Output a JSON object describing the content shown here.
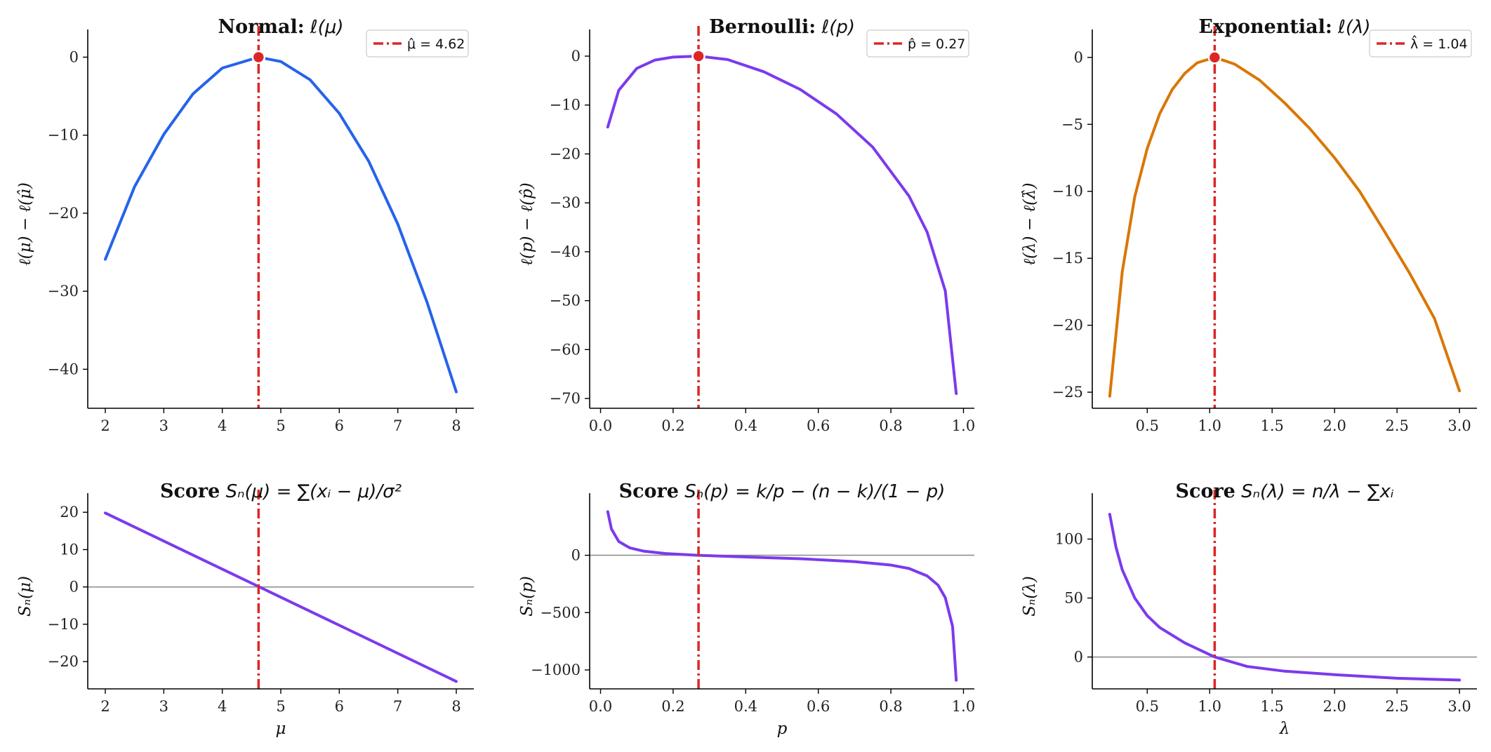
{
  "colors": {
    "mle_line": "#dc2626",
    "normal_curve": "#2563eb",
    "bernoulli_curve": "#7c3aed",
    "exponential_curve": "#d97706",
    "score_curve": "#7c3aed",
    "zero_line": "#888888"
  },
  "chart_data": [
    {
      "type": "line",
      "title_bold": "Normal:",
      "title_math": "ℓ(μ)",
      "xlabel": "",
      "ylabel": "ℓ(μ) − ℓ(μ̂)",
      "xlim": [
        1.7,
        8.3
      ],
      "ylim": [
        -45,
        2.2
      ],
      "xticks": [
        2,
        3,
        4,
        5,
        6,
        7,
        8
      ],
      "yticks": [
        0,
        -10,
        -20,
        -30,
        -40
      ],
      "mle": 4.62,
      "legend": "μ̂ = 4.62",
      "legend_position": "top-right",
      "series": [
        {
          "curve": "normal_curve",
          "x": [
            2,
            2.5,
            3,
            3.5,
            4,
            4.62,
            5,
            5.5,
            6,
            6.5,
            7,
            7.5,
            8
          ],
          "y": [
            -25.9,
            -16.6,
            -9.9,
            -4.7,
            -1.4,
            0,
            -0.56,
            -2.9,
            -7.2,
            -13.3,
            -21.4,
            -31.4,
            -42.9
          ]
        }
      ]
    },
    {
      "type": "line",
      "title_bold": "Bernoulli:",
      "title_math": "ℓ(p)",
      "xlabel": "",
      "ylabel": "ℓ(p) − ℓ(p̂)",
      "xlim": [
        -0.03,
        1.03
      ],
      "ylim": [
        -72,
        3.3
      ],
      "xticks": [
        0.0,
        0.2,
        0.4,
        0.6,
        0.8,
        1.0
      ],
      "yticks": [
        0,
        -10,
        -20,
        -30,
        -40,
        -50,
        -60,
        -70
      ],
      "mle": 0.27,
      "legend": "p̂ = 0.27",
      "legend_position": "top-right",
      "series": [
        {
          "curve": "bernoulli_curve",
          "x": [
            0.02,
            0.05,
            0.1,
            0.15,
            0.2,
            0.27,
            0.35,
            0.45,
            0.55,
            0.65,
            0.75,
            0.85,
            0.9,
            0.95,
            0.98
          ],
          "y": [
            -14.5,
            -7.0,
            -2.5,
            -0.8,
            -0.2,
            0,
            -0.7,
            -3.2,
            -6.8,
            -11.8,
            -18.6,
            -28.6,
            -36.0,
            -48.0,
            -69.0
          ]
        }
      ]
    },
    {
      "type": "line",
      "title_bold": "Exponential:",
      "title_math": "ℓ(λ)",
      "xlabel": "",
      "ylabel": "ℓ(λ) − ℓ(λ̂)",
      "xlim": [
        0.06,
        3.14
      ],
      "ylim": [
        -26.2,
        1.3
      ],
      "xticks": [
        0.5,
        1.0,
        1.5,
        2.0,
        2.5,
        3.0
      ],
      "yticks": [
        0,
        -5,
        -10,
        -15,
        -20,
        -25
      ],
      "mle": 1.04,
      "legend": "λ̂ = 1.04",
      "legend_position": "top-right",
      "series": [
        {
          "curve": "exponential_curve",
          "x": [
            0.2,
            0.3,
            0.4,
            0.5,
            0.6,
            0.7,
            0.8,
            0.9,
            1.04,
            1.2,
            1.4,
            1.6,
            1.8,
            2.0,
            2.2,
            2.4,
            2.6,
            2.8,
            3.0
          ],
          "y": [
            -25.3,
            -16.0,
            -10.4,
            -6.8,
            -4.2,
            -2.4,
            -1.2,
            -0.4,
            0,
            -0.5,
            -1.7,
            -3.4,
            -5.3,
            -7.5,
            -10.0,
            -13.0,
            -16.1,
            -19.5,
            -24.9
          ]
        }
      ]
    },
    {
      "type": "line",
      "title_bold": "Score",
      "title_math": "Sₙ(μ) = ∑(xᵢ − μ)/σ²",
      "xlabel": "μ",
      "ylabel": "Sₙ(μ)",
      "xlim": [
        1.7,
        8.3
      ],
      "ylim": [
        -27.3,
        22.3
      ],
      "xticks": [
        2,
        3,
        4,
        5,
        6,
        7,
        8
      ],
      "yticks": [
        20,
        10,
        0,
        -10,
        -20
      ],
      "mle": 4.62,
      "zero_line": true,
      "series": [
        {
          "curve": "score_curve",
          "x": [
            2,
            8
          ],
          "y": [
            19.8,
            -25.3
          ]
        }
      ]
    },
    {
      "type": "line",
      "title_bold": "Score",
      "title_math": "Sₙ(p) = k/p − (n − k)/(1 − p)",
      "xlabel": "p",
      "ylabel": "Sₙ(p)",
      "xlim": [
        -0.03,
        1.03
      ],
      "ylim": [
        -1165,
        450
      ],
      "xticks": [
        0.0,
        0.2,
        0.4,
        0.6,
        0.8,
        1.0
      ],
      "yticks": [
        0,
        -500,
        -1000
      ],
      "mle": 0.27,
      "zero_line": true,
      "series": [
        {
          "curve": "score_curve",
          "x": [
            0.02,
            0.03,
            0.05,
            0.08,
            0.12,
            0.18,
            0.27,
            0.4,
            0.55,
            0.7,
            0.8,
            0.85,
            0.9,
            0.93,
            0.95,
            0.97,
            0.98
          ],
          "y": [
            380,
            230,
            120,
            65,
            35,
            15,
            0,
            -15,
            -30,
            -55,
            -85,
            -115,
            -180,
            -260,
            -370,
            -620,
            -1090
          ]
        }
      ]
    },
    {
      "type": "line",
      "title_bold": "Score",
      "title_math": "Sₙ(λ) = n/λ − ∑xᵢ",
      "xlabel": "λ",
      "ylabel": "Sₙ(λ)",
      "xlim": [
        0.06,
        3.14
      ],
      "ylim": [
        -27,
        130
      ],
      "xticks": [
        0.5,
        1.0,
        1.5,
        2.0,
        2.5,
        3.0
      ],
      "yticks": [
        100,
        50,
        0
      ],
      "mle": 1.04,
      "zero_line": true,
      "series": [
        {
          "curve": "score_curve",
          "x": [
            0.2,
            0.25,
            0.3,
            0.4,
            0.5,
            0.6,
            0.8,
            1.04,
            1.3,
            1.6,
            2.0,
            2.5,
            3.0
          ],
          "y": [
            121,
            93,
            74,
            50,
            35,
            25,
            12,
            0,
            -8,
            -12,
            -15,
            -18,
            -19.5
          ]
        }
      ]
    }
  ]
}
